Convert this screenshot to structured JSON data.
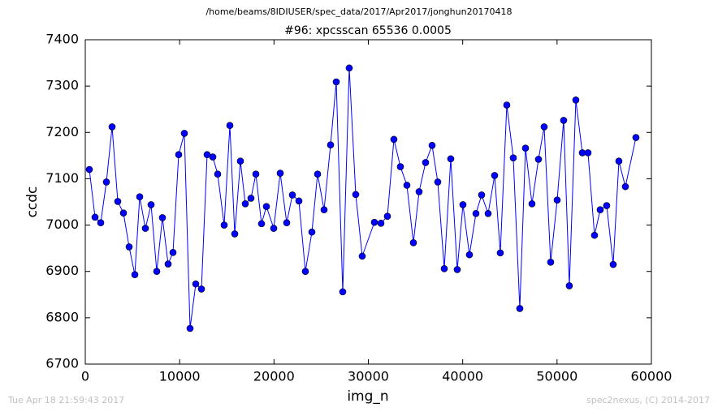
{
  "chart_data": {
    "type": "line",
    "suptitle": "/home/beams/8IDIUSER/spec_data/2017/Apr2017/jonghun20170418",
    "title": "#96: xpcsscan 65536 0.0005",
    "x_label": "img_n",
    "y_label": "ccdc",
    "footer_left": "Tue Apr 18 21:59:43 2017",
    "footer_right": "spec2nexus, (C) 2014-2017",
    "x": [
      430,
      1033,
      1636,
      2238,
      2841,
      3443,
      4046,
      4648,
      5251,
      5767,
      6370,
      6973,
      7575,
      8178,
      8780,
      9297,
      9899,
      10502,
      11105,
      11707,
      12310,
      12912,
      13515,
      14031,
      14720,
      15323,
      15839,
      16442,
      16958,
      17561,
      18078,
      18680,
      19197,
      19971,
      20660,
      21348,
      21951,
      22640,
      23328,
      24017,
      24619,
      25308,
      25997,
      26600,
      27287,
      27976,
      28665,
      29353,
      30644,
      31333,
      32021,
      32710,
      33399,
      34087,
      34776,
      35378,
      36067,
      36756,
      37358,
      38047,
      38735,
      39424,
      40027,
      40715,
      41404,
      42006,
      42695,
      43384,
      43986,
      44675,
      45363,
      46052,
      46655,
      47343,
      48032,
      48635,
      49323,
      50012,
      50700,
      51303,
      51992,
      52680,
      53283,
      53971,
      54574,
      55263,
      55951,
      56554,
      57243,
      58362
    ],
    "series": [
      {
        "name": "ccdc",
        "color": "#0000ff",
        "values": [
          7120,
          7017,
          7005,
          7093,
          7212,
          7051,
          7026,
          6953,
          6893,
          7061,
          6993,
          7044,
          6900,
          7016,
          6916,
          6941,
          7152,
          7198,
          6777,
          6873,
          6862,
          7152,
          7147,
          7110,
          7000,
          7215,
          6981,
          7138,
          7046,
          7058,
          7110,
          7003,
          7040,
          6993,
          7112,
          7005,
          7065,
          7052,
          6900,
          6985,
          7110,
          7033,
          7173,
          7309,
          6856,
          7339,
          7066,
          6933,
          7006,
          7004,
          7019,
          7185,
          7126,
          7086,
          6962,
          7072,
          7135,
          7172,
          7093,
          6906,
          7143,
          6904,
          7044,
          6936,
          7025,
          7065,
          7025,
          7107,
          6940,
          7259,
          7145,
          6820,
          7166,
          7046,
          7142,
          7212,
          6920,
          7054,
          7226,
          6869,
          7270,
          7156,
          7156,
          6978,
          7033,
          7042,
          6915,
          7138,
          7083,
          7189
        ]
      }
    ],
    "xlim": [
      0,
      60000
    ],
    "xticks": [
      0,
      10000,
      20000,
      30000,
      40000,
      50000,
      60000
    ],
    "ylim": [
      6700,
      7400
    ],
    "yticks": [
      6700,
      6800,
      6900,
      7000,
      7100,
      7200,
      7300,
      7400
    ],
    "grid": false
  }
}
